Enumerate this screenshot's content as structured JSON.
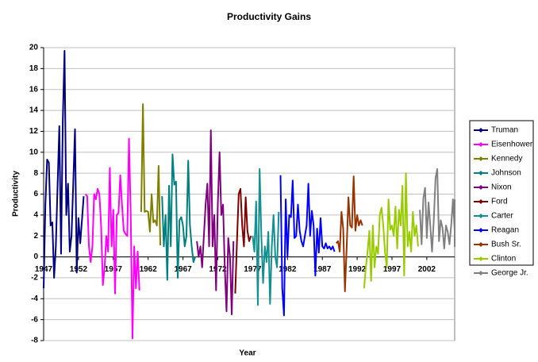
{
  "chart_data": {
    "type": "line",
    "title": "Productivity Gains",
    "x_label": "Year",
    "y_label": "Productivity",
    "xlim": [
      1947,
      2006
    ],
    "xticks": [
      1947,
      1952,
      1957,
      1962,
      1967,
      1972,
      1977,
      1982,
      1987,
      1992,
      1997,
      2002
    ],
    "ylim": [
      -8,
      20
    ],
    "yticks": [
      -8,
      -6,
      -4,
      -2,
      0,
      2,
      4,
      6,
      8,
      10,
      12,
      14,
      16,
      18,
      20
    ],
    "grid": true,
    "legend": "right",
    "series": [
      {
        "name": "Truman",
        "color": "#000080",
        "x": [
          1947,
          1947.25,
          1947.5,
          1947.75,
          1948,
          1948.25,
          1948.5,
          1948.75,
          1949,
          1949.25,
          1949.5,
          1949.75,
          1950,
          1950.25,
          1950.5,
          1950.75,
          1951,
          1951.25,
          1951.5,
          1951.75,
          1952,
          1952.25,
          1952.5,
          1952.75
        ],
        "values": [
          -3,
          5,
          9.3,
          9,
          3,
          3.3,
          -2,
          1,
          6.8,
          12.5,
          0.3,
          13,
          19.7,
          4,
          7,
          0.5,
          2,
          7,
          12.2,
          -1.5,
          3.7,
          1.3,
          3.5,
          5.8
        ]
      },
      {
        "name": "Eisenhower",
        "color": "#FF00FF",
        "x": [
          1953,
          1953.25,
          1953.5,
          1953.75,
          1954,
          1954.25,
          1954.5,
          1954.75,
          1955,
          1955.25,
          1955.5,
          1955.75,
          1956,
          1956.25,
          1956.5,
          1956.75,
          1957,
          1957.25,
          1957.5,
          1957.75,
          1958,
          1958.25,
          1958.5,
          1958.75,
          1959,
          1959.25,
          1959.5,
          1959.75,
          1960,
          1960.25,
          1960.5,
          1960.75
        ],
        "values": [
          6,
          5.8,
          1,
          -0.5,
          1,
          6,
          5.5,
          6.5,
          6,
          3,
          -2.7,
          -1,
          2,
          0.5,
          8.5,
          1,
          4.5,
          -3.5,
          4,
          4.2,
          7.8,
          5,
          2.5,
          2.2,
          2,
          11.3,
          4,
          -7.8,
          1,
          -3,
          0.5,
          -3.2
        ]
      },
      {
        "name": "Kennedy",
        "color": "#808000",
        "x": [
          1961,
          1961.25,
          1961.5,
          1961.75,
          1962,
          1962.25,
          1962.5,
          1962.75,
          1963,
          1963.25,
          1963.5,
          1963.75
        ],
        "values": [
          4.3,
          14.6,
          4.3,
          4.4,
          4.3,
          2.4,
          6,
          3.3,
          3.5,
          3,
          8.7,
          1.1
        ]
      },
      {
        "name": "Johnson",
        "color": "#008080",
        "x": [
          1964,
          1964.25,
          1964.5,
          1964.75,
          1965,
          1965.25,
          1965.5,
          1965.75,
          1966,
          1966.25,
          1966.5,
          1966.75,
          1967,
          1967.25,
          1967.5,
          1967.75,
          1968,
          1968.25,
          1968.5,
          1968.75
        ],
        "values": [
          5.8,
          1,
          4,
          -2.2,
          6.8,
          1,
          9.8,
          6.9,
          7.2,
          -2,
          3.5,
          3.8,
          3,
          1,
          2,
          9.2,
          3,
          1,
          -0.5,
          0
        ]
      },
      {
        "name": "Nixon",
        "color": "#800080",
        "x": [
          1969,
          1969.25,
          1969.5,
          1969.75,
          1970,
          1970.25,
          1970.5,
          1970.75,
          1971,
          1971.25,
          1971.5,
          1971.75,
          1972,
          1972.25,
          1972.5,
          1972.75,
          1973,
          1973.25,
          1973.5,
          1973.75,
          1974,
          1974.25
        ],
        "values": [
          1.5,
          0,
          1,
          -1,
          2,
          5,
          7,
          1,
          12.1,
          1,
          4,
          -3.2,
          5,
          10,
          4,
          5,
          -1,
          -5.2,
          1.8,
          0,
          -5.5,
          1.5
        ]
      },
      {
        "name": "Ford",
        "color": "#800000",
        "x": [
          1974.5,
          1974.75,
          1975,
          1975.25,
          1975.5,
          1975.75,
          1976,
          1976.25,
          1976.5,
          1976.75
        ],
        "values": [
          -3.5,
          1.5,
          6,
          6.5,
          3,
          1,
          5.7,
          2.5,
          1.5,
          2
        ]
      },
      {
        "name": "Carter",
        "color": "#139090",
        "x": [
          1977,
          1977.25,
          1977.5,
          1977.75,
          1978,
          1978.25,
          1978.5,
          1978.75,
          1979,
          1979.25,
          1979.5,
          1979.75,
          1980,
          1980.25,
          1980.5,
          1980.75
        ],
        "values": [
          2,
          0.5,
          5.3,
          -4.6,
          8.4,
          2,
          -2.5,
          1,
          -0.5,
          2.4,
          -4.5,
          1,
          4,
          0,
          -1,
          4.3
        ]
      },
      {
        "name": "Reagan",
        "color": "#0000FF",
        "x": [
          1981,
          1981.25,
          1981.5,
          1981.75,
          1982,
          1982.25,
          1982.5,
          1982.75,
          1983,
          1983.25,
          1983.5,
          1983.75,
          1984,
          1984.25,
          1984.5,
          1984.75,
          1985,
          1985.25,
          1985.5,
          1985.75,
          1986,
          1986.25,
          1986.5,
          1986.75,
          1987,
          1987.25,
          1987.5,
          1987.75,
          1988,
          1988.25,
          1988.5,
          1988.75
        ],
        "values": [
          7.8,
          -3,
          -5.6,
          5.5,
          0,
          4,
          3.8,
          7.3,
          1.8,
          2,
          5,
          2.5,
          1.5,
          1,
          2,
          3,
          7,
          2,
          4.4,
          3,
          -1.8,
          2.7,
          0.4,
          3.7,
          1,
          0.8,
          1.3,
          0.8,
          1,
          0.7,
          1,
          0.5
        ]
      },
      {
        "name": "Bush Sr.",
        "color": "#993300",
        "x": [
          1989,
          1989.25,
          1989.5,
          1989.75,
          1990,
          1990.25,
          1990.5,
          1990.75,
          1991,
          1991.25,
          1991.5,
          1991.75,
          1992,
          1992.25,
          1992.5,
          1992.75
        ],
        "values": [
          1.3,
          1.5,
          0.5,
          4.3,
          2.7,
          -3.3,
          1,
          5.7,
          3,
          2.8,
          7.7,
          2.5,
          4,
          3,
          3.5,
          3
        ]
      },
      {
        "name": "Clinton",
        "color": "#99CC00",
        "x": [
          1993,
          1993.25,
          1993.5,
          1993.75,
          1994,
          1994.25,
          1994.5,
          1994.75,
          1995,
          1995.25,
          1995.5,
          1995.75,
          1996,
          1996.25,
          1996.5,
          1996.75,
          1997,
          1997.25,
          1997.5,
          1997.75,
          1998,
          1998.25,
          1998.5,
          1998.75,
          1999,
          1999.25,
          1999.5,
          1999.75,
          2000,
          2000.25,
          2000.5,
          2000.75
        ],
        "values": [
          -3,
          -1,
          0.5,
          2.5,
          -2.3,
          3,
          -1,
          1,
          0.3,
          4,
          4.7,
          3,
          0.5,
          -1,
          5.5,
          2.6,
          3,
          2,
          4.8,
          0.8,
          4.5,
          3,
          6.8,
          -1.8,
          8,
          1,
          2.4,
          0.5,
          4.3,
          2,
          3,
          1
        ]
      },
      {
        "name": "George Jr.",
        "color": "#808080",
        "x": [
          2001,
          2001.25,
          2001.5,
          2001.75,
          2002,
          2002.25,
          2002.5,
          2002.75,
          2003,
          2003.25,
          2003.5,
          2003.75,
          2004,
          2004.25,
          2004.5,
          2004.75,
          2005,
          2005.25,
          2005.5,
          2005.75,
          2006,
          2006,
          2006,
          2006
        ],
        "values": [
          4.5,
          1.2,
          5.6,
          6.6,
          1.8,
          5.2,
          3,
          0.5,
          3.5,
          7.5,
          8.4,
          1.5,
          3.5,
          2.8,
          0.8,
          3,
          2.4,
          1.2,
          3,
          5.5,
          2.5,
          3,
          1,
          5.5
        ]
      }
    ]
  }
}
